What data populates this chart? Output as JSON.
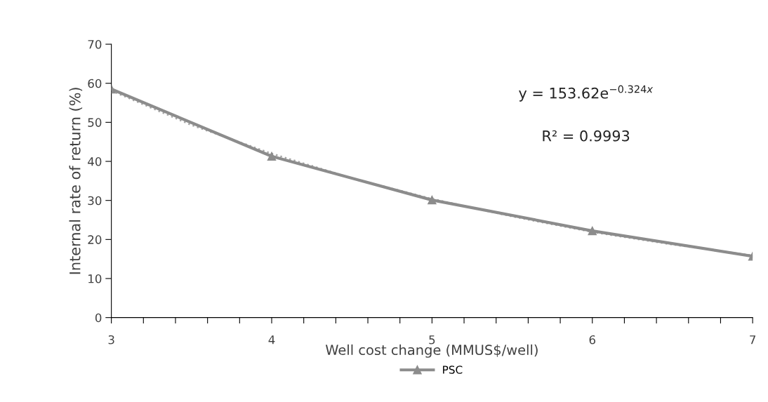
{
  "chart_data": {
    "type": "line",
    "xlabel": "Well cost change (MMUS$/well)",
    "ylabel": "Internal rate of return (%)",
    "x": [
      3,
      4,
      5,
      6,
      7
    ],
    "series": [
      {
        "name": "PSC",
        "color": "#8c8c8c",
        "values": [
          58.5,
          41.3,
          30.1,
          22.2,
          15.7
        ],
        "marker": "triangle",
        "line_style": "solid"
      },
      {
        "type": "line",
        "color": "#a6a6a6",
        "x": [
          3,
          3.5,
          4,
          4.5,
          5,
          5.5,
          6,
          6.5,
          7
        ],
        "values": [
          58.1,
          49.3,
          42.0,
          35.7,
          30.4,
          25.9,
          21.9,
          18.7,
          15.9
        ],
        "marker": "none",
        "line_style": "dotted"
      }
    ],
    "xlim": [
      3,
      7
    ],
    "ylim": [
      0,
      70
    ],
    "xticks": [
      3,
      {
        "value": 3.2,
        "label": null
      },
      {
        "value": 3.4,
        "label": null
      },
      {
        "value": 3.6,
        "label": null
      },
      {
        "value": 3.8,
        "label": null
      },
      4,
      {
        "value": 4.2,
        "label": null
      },
      {
        "value": 4.4,
        "label": null
      },
      {
        "value": 4.6,
        "label": null
      },
      {
        "value": 4.8,
        "label": null
      },
      5,
      {
        "value": 5.2,
        "label": null
      },
      {
        "value": 5.4,
        "label": null
      },
      {
        "value": 5.6,
        "label": null
      },
      {
        "value": 5.8,
        "label": null
      },
      6,
      {
        "value": 6.2,
        "label": null
      },
      {
        "value": 6.4,
        "label": null
      },
      {
        "value": 6.6,
        "label": null
      },
      {
        "value": 6.8,
        "label": null
      },
      7
    ],
    "yticks": [
      0,
      10,
      20,
      30,
      40,
      50,
      60,
      70
    ],
    "annotations": [
      "y = 153.62e$^{−0.324x}$",
      "R² = 0.9993"
    ],
    "grid": false,
    "legend": "bottom"
  }
}
